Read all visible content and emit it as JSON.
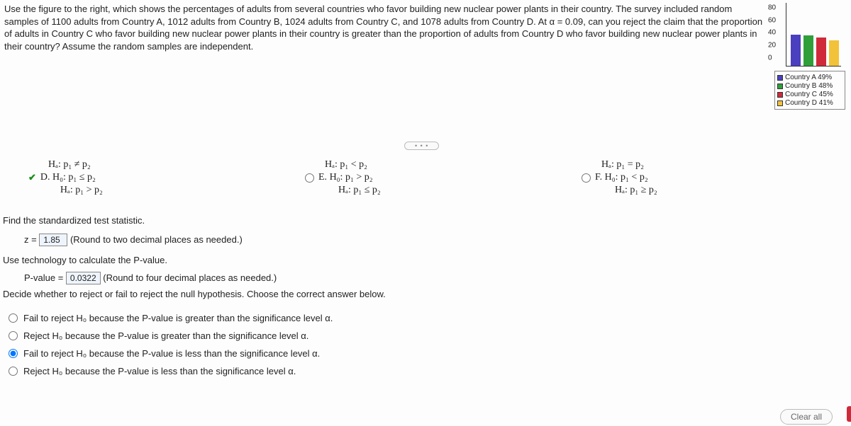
{
  "prompt": "Use the figure to the right, which shows the percentages of adults from several countries who favor building new nuclear power plants in their country. The survey included random samples of 1100 adults from Country A, 1012 adults from Country B, 1024 adults from Country C, and 1078 adults from Country D. At α = 0.09, can you reject the claim that the proportion of adults in Country C who favor building new nuclear power plants in their country is greater than the proportion of adults from Country D who favor building new nuclear power plants in their country? Assume the random samples are independent.",
  "chart": {
    "type": "bar",
    "ylim": [
      0,
      100
    ],
    "yticks": [
      0,
      20,
      40,
      60,
      80,
      100
    ],
    "background_color": "#ffffff",
    "bars": [
      {
        "label": "Country A 49%",
        "value": 49,
        "color": "#4a3fbf"
      },
      {
        "label": "Country B 48%",
        "value": 48,
        "color": "#2f9f3a"
      },
      {
        "label": "Country C 45%",
        "value": 45,
        "color": "#d02a3a"
      },
      {
        "label": "Country D 41%",
        "value": 41,
        "color": "#f2c23a"
      }
    ]
  },
  "options": {
    "colA": {
      "ha_top": "Hₐ: p₁ ≠ p₂",
      "letter": "D.",
      "h0": "H₀: p₁ ≤ p₂",
      "ha": "Hₐ: p₁ > p₂",
      "selected": true
    },
    "colB": {
      "ha_top": "Hₐ: p₁ < p₂",
      "letter": "E.",
      "h0": "H₀: p₁ > p₂",
      "ha": "Hₐ: p₁ ≤ p₂",
      "selected": false
    },
    "colC": {
      "ha_top": "Hₐ: p₁ = p₂",
      "letter": "F.",
      "h0": "H₀: p₁ < p₂",
      "ha": "Hₐ: p₁ ≥ p₂",
      "selected": false
    }
  },
  "q_statistic_label": "Find the standardized test statistic.",
  "z_label": "z =",
  "z_value": "1.85",
  "z_hint": "(Round to two decimal places as needed.)",
  "pval_instr": "Use technology to calculate the P-value.",
  "pval_label": "P-value =",
  "pval_value": "0.0322",
  "pval_hint": "(Round to four decimal places as needed.)",
  "decision_prompt": "Decide whether to reject or fail to reject the null hypothesis. Choose the correct answer below.",
  "decisions": [
    {
      "text": "Fail to reject H₀ because the P-value is greater than the significance level α.",
      "selected": false
    },
    {
      "text": "Reject H₀ because the P-value is greater than the significance level α.",
      "selected": false
    },
    {
      "text": "Fail to reject H₀ because the P-value is less than the significance level α.",
      "selected": true
    },
    {
      "text": "Reject H₀ because the P-value is less than the significance level α.",
      "selected": false
    }
  ],
  "ellipsis": "• • •",
  "clear_all": "Clear all"
}
